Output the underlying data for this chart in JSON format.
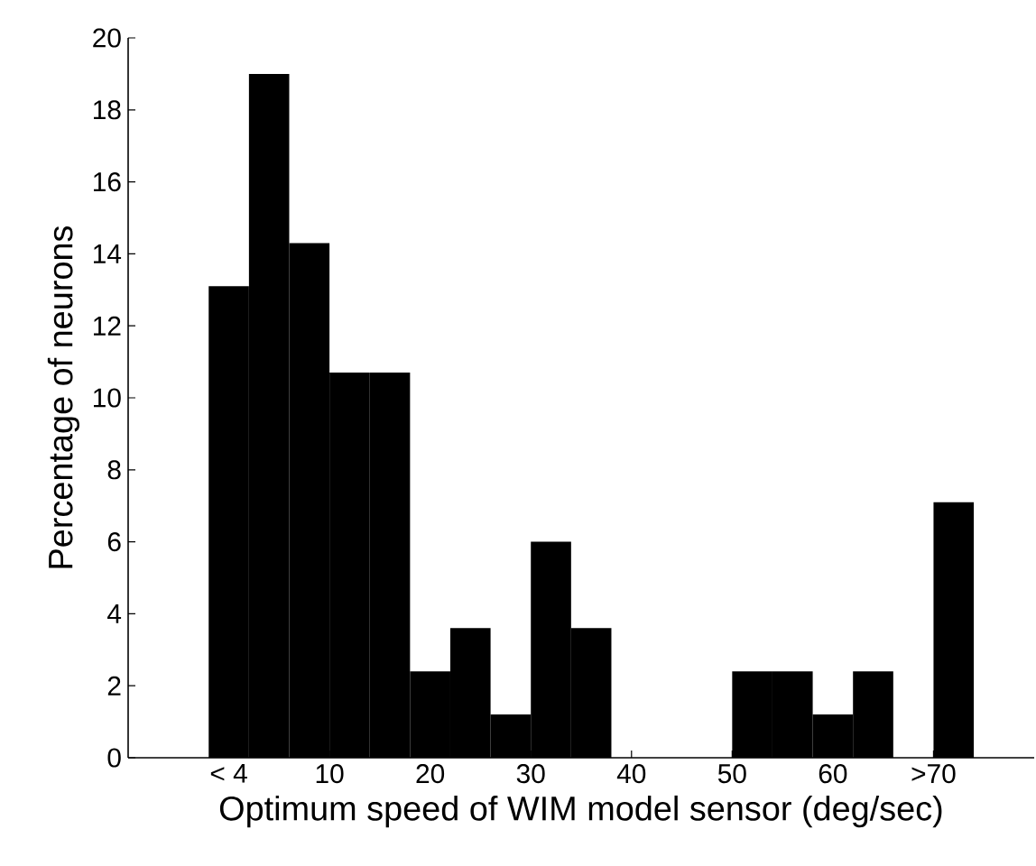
{
  "chart_data": {
    "type": "histogram",
    "xlabel": "Optimum speed of WIM model sensor (deg/sec)",
    "ylabel": "Percentage of neurons",
    "bins": [
      -2,
      2,
      6,
      10,
      14,
      18,
      22,
      26,
      30,
      34,
      38,
      42,
      46,
      50,
      54,
      58,
      62,
      66,
      70,
      74
    ],
    "values": [
      13.1,
      19.0,
      14.3,
      10.7,
      10.7,
      2.4,
      3.6,
      1.2,
      6.0,
      3.6,
      0,
      0,
      0,
      2.4,
      2.4,
      1.2,
      2.4,
      0,
      7.1
    ],
    "color": "#000000",
    "xlim": [
      -10,
      80
    ],
    "ylim": [
      0,
      20
    ],
    "xticks": [
      {
        "value": 0,
        "label": "< 4"
      },
      10,
      20,
      30,
      40,
      50,
      60,
      {
        "value": 70,
        "label": ">70"
      }
    ],
    "yticks": [
      0,
      2,
      4,
      6,
      8,
      10,
      12,
      14,
      16,
      18,
      20
    ],
    "grid": false
  }
}
